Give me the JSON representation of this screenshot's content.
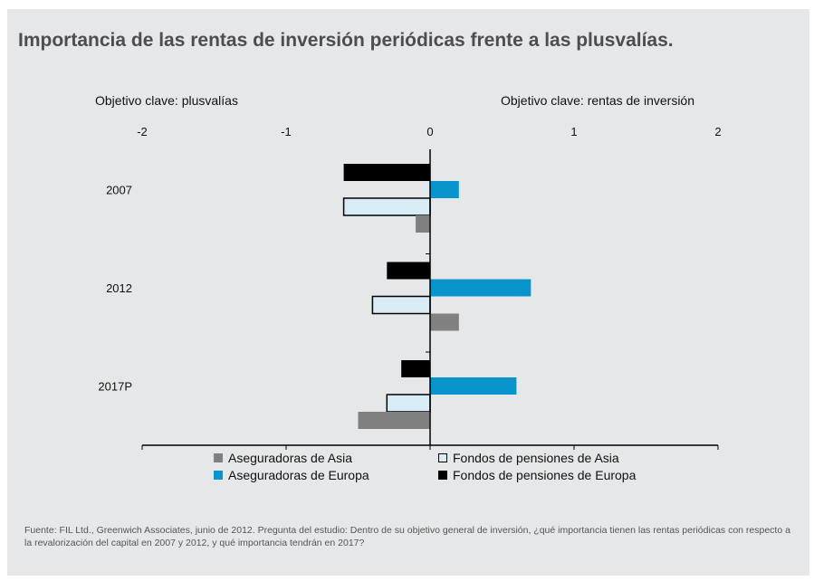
{
  "title": "Importancia de las rentas de inversión periódicas frente a las plusvalías.",
  "left_axis_label": "Objetivo clave: plusvalías",
  "right_axis_label": "Objetivo clave: rentas de inversión",
  "source": "Fuente: FIL Ltd., Greenwich Associates, junio de 2012. Pregunta del estudio: Dentro de su objetivo general de inversión, ¿qué importancia tienen las rentas periódicas con respecto a la revalorización del capital en 2007 y 2012, y qué importancia tendrán en 2017?",
  "legend": [
    {
      "label": "Aseguradoras de Asia",
      "color": "#808080",
      "outline": false
    },
    {
      "label": "Fondos de pensiones de Asia",
      "color": "#d8ecf5",
      "outline": true
    },
    {
      "label": "Aseguradoras de Europa",
      "color": "#0a94cc",
      "outline": false
    },
    {
      "label": "Fondos de pensiones de Europa",
      "color": "#000000",
      "outline": false
    }
  ],
  "chart_data": {
    "type": "bar",
    "orientation": "horizontal",
    "categories": [
      "2007",
      "2012",
      "2017P"
    ],
    "xlim": [
      -2,
      2
    ],
    "xticks": [
      "-2",
      "-1",
      "0",
      "1",
      "2"
    ],
    "series": [
      {
        "name": "Fondos de pensiones de Europa",
        "color": "#000000",
        "outline": false,
        "values": [
          -0.6,
          -0.3,
          -0.2
        ]
      },
      {
        "name": "Aseguradoras de Europa",
        "color": "#0a94cc",
        "outline": false,
        "values": [
          0.2,
          0.7,
          0.6
        ]
      },
      {
        "name": "Fondos de pensiones de Asia",
        "color": "#d8ecf5",
        "outline": true,
        "values": [
          -0.6,
          -0.4,
          -0.3
        ]
      },
      {
        "name": "Aseguradoras de Asia",
        "color": "#808080",
        "outline": false,
        "values": [
          -0.1,
          0.2,
          -0.5
        ]
      }
    ]
  }
}
